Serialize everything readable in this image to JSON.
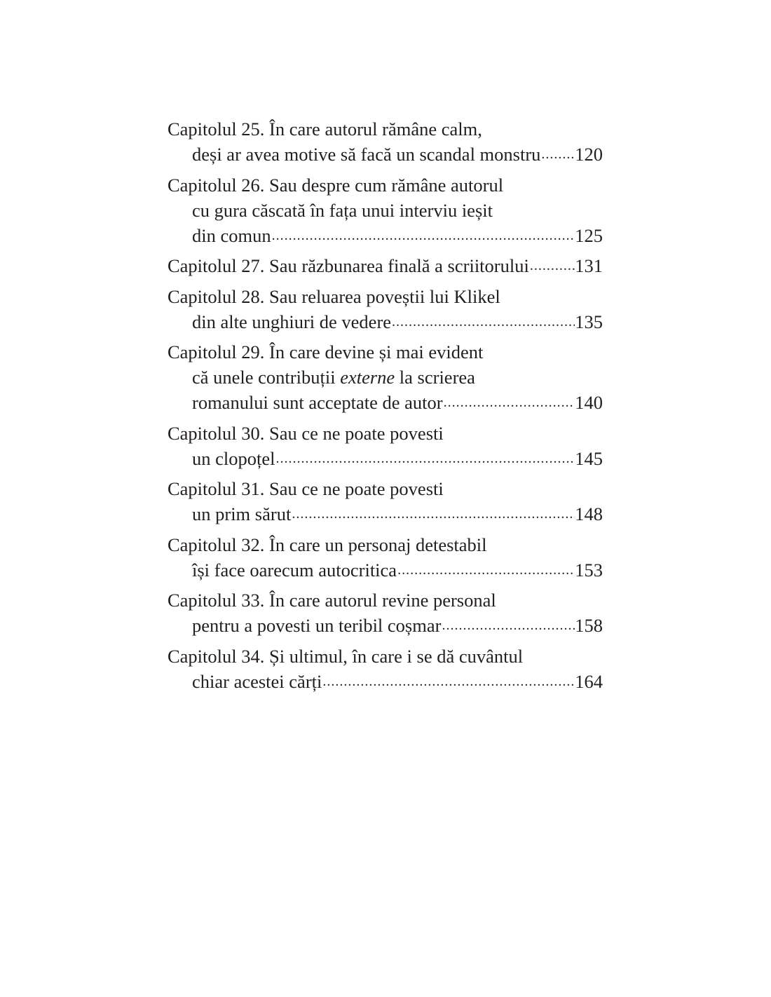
{
  "toc": {
    "entries": [
      {
        "lines": [
          [
            {
              "t": "Capitolul 25. În care autorul rămâne calm,"
            }
          ],
          [
            {
              "t": "deși ar avea motive să facă un scandal monstru"
            }
          ]
        ],
        "page": "120"
      },
      {
        "lines": [
          [
            {
              "t": "Capitolul 26. Sau despre cum rămâne autorul"
            }
          ],
          [
            {
              "t": "cu gura căscată în fața unui interviu ieșit"
            }
          ],
          [
            {
              "t": "din comun"
            }
          ]
        ],
        "page": "125"
      },
      {
        "lines": [
          [
            {
              "t": "Capitolul 27. Sau răzbunarea finală a scriitorului"
            }
          ]
        ],
        "page": "131"
      },
      {
        "lines": [
          [
            {
              "t": "Capitolul 28. Sau reluarea poveștii lui Klikel"
            }
          ],
          [
            {
              "t": "din alte unghiuri de vedere"
            }
          ]
        ],
        "page": "135"
      },
      {
        "lines": [
          [
            {
              "t": "Capitolul 29. În care devine și mai evident"
            }
          ],
          [
            {
              "t": "că unele contribuții "
            },
            {
              "t": "externe",
              "italic": true
            },
            {
              "t": " la scrierea"
            }
          ],
          [
            {
              "t": "romanului sunt acceptate de autor"
            }
          ]
        ],
        "page": "140"
      },
      {
        "lines": [
          [
            {
              "t": "Capitolul 30. Sau ce ne poate povesti"
            }
          ],
          [
            {
              "t": "un clopoțel"
            }
          ]
        ],
        "page": "145"
      },
      {
        "lines": [
          [
            {
              "t": "Capitolul 31. Sau ce ne poate povesti"
            }
          ],
          [
            {
              "t": "un prim sărut"
            }
          ]
        ],
        "page": "148"
      },
      {
        "lines": [
          [
            {
              "t": "Capitolul 32. În care un personaj detestabil"
            }
          ],
          [
            {
              "t": "își face oarecum autocritica "
            }
          ]
        ],
        "page": "153"
      },
      {
        "lines": [
          [
            {
              "t": "Capitolul 33. În care autorul revine personal"
            }
          ],
          [
            {
              "t": "pentru a povesti un teribil coșmar"
            }
          ]
        ],
        "page": "158"
      },
      {
        "lines": [
          [
            {
              "t": "Capitolul 34. Și ultimul, în care i se dă cuvântul"
            }
          ],
          [
            {
              "t": "chiar acestei cărți "
            }
          ]
        ],
        "page": "164"
      }
    ]
  }
}
